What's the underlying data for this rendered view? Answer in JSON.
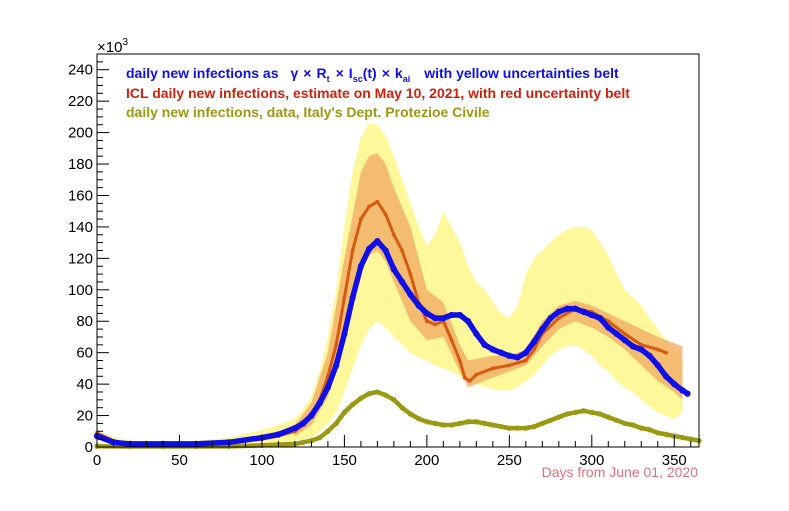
{
  "chart_data": {
    "type": "line",
    "title": "",
    "xlabel": "Days from June 01, 2020",
    "ylabel": "",
    "y_multiplier_label": "×10",
    "y_multiplier_exp": "3",
    "xlim": [
      0,
      365
    ],
    "ylim": [
      0,
      250
    ],
    "x_ticks": [
      0,
      50,
      100,
      150,
      200,
      250,
      300,
      350
    ],
    "y_ticks": [
      0,
      20,
      40,
      60,
      80,
      100,
      120,
      140,
      160,
      180,
      200,
      220,
      240
    ],
    "colors": {
      "model": "#1010e6",
      "icl": "#d85a10",
      "data": "#9a9a10",
      "yellow_band": "#fff89a",
      "red_band": "#f0a860",
      "xlabel": "#e0707a"
    },
    "legend": {
      "model": {
        "prefix": "daily new infections as",
        "gamma": "γ",
        "times": "×",
        "R": "R",
        "R_sub": "t",
        "I": "I",
        "I_sub": "sc",
        "t_arg": "(t)",
        "k": "k",
        "k_sub": "ai",
        "suffix": "with yellow uncertainties belt"
      },
      "icl": "ICL daily new infections, estimate on May 10, 2021, with red uncertainty belt",
      "data": "daily new infections, data, Italy's Dept. Protezioe Civile"
    },
    "series": [
      {
        "name": "model",
        "x": [
          0,
          10,
          20,
          40,
          60,
          80,
          100,
          110,
          120,
          125,
          130,
          135,
          140,
          145,
          150,
          155,
          160,
          165,
          170,
          175,
          180,
          185,
          190,
          195,
          200,
          205,
          210,
          215,
          220,
          225,
          230,
          235,
          240,
          245,
          250,
          255,
          260,
          265,
          270,
          275,
          280,
          285,
          290,
          295,
          300,
          305,
          310,
          315,
          320,
          325,
          330,
          335,
          340,
          345,
          350,
          355,
          358
        ],
        "values": [
          7,
          3,
          2,
          2,
          2,
          3,
          6,
          8,
          12,
          15,
          20,
          28,
          38,
          52,
          72,
          95,
          115,
          126,
          131,
          125,
          113,
          105,
          97,
          90,
          85,
          82,
          82,
          84,
          84,
          80,
          72,
          65,
          62,
          60,
          58,
          57,
          60,
          67,
          75,
          82,
          86,
          88,
          88,
          86,
          84,
          82,
          76,
          72,
          68,
          64,
          62,
          58,
          52,
          45,
          40,
          36,
          34
        ]
      },
      {
        "name": "icl",
        "x": [
          0,
          10,
          20,
          40,
          60,
          80,
          100,
          110,
          120,
          125,
          130,
          135,
          140,
          145,
          150,
          155,
          160,
          165,
          170,
          175,
          180,
          185,
          190,
          195,
          200,
          205,
          210,
          215,
          220,
          223,
          226,
          230,
          240,
          250,
          260,
          265,
          270,
          280,
          290,
          300,
          310,
          320,
          330,
          340,
          345
        ],
        "values": [
          9,
          4,
          2,
          2,
          2,
          3,
          5,
          7,
          10,
          14,
          20,
          30,
          45,
          65,
          95,
          125,
          145,
          153,
          156,
          148,
          135,
          125,
          110,
          92,
          80,
          78,
          80,
          68,
          55,
          44,
          42,
          46,
          50,
          52,
          55,
          62,
          72,
          82,
          88,
          86,
          80,
          72,
          65,
          62,
          60
        ]
      },
      {
        "name": "data",
        "x": [
          0,
          20,
          40,
          60,
          80,
          100,
          110,
          120,
          125,
          130,
          135,
          140,
          145,
          150,
          155,
          160,
          165,
          170,
          175,
          180,
          185,
          190,
          195,
          200,
          205,
          210,
          215,
          220,
          225,
          230,
          235,
          240,
          245,
          250,
          255,
          260,
          265,
          270,
          275,
          280,
          285,
          290,
          295,
          300,
          305,
          310,
          315,
          320,
          325,
          330,
          335,
          340,
          345,
          350,
          355,
          360,
          365
        ],
        "values": [
          0.5,
          0.3,
          0.3,
          0.3,
          0.4,
          1,
          1.5,
          2,
          3,
          4,
          6,
          10,
          15,
          22,
          27,
          31,
          34,
          35,
          33,
          30,
          25,
          21,
          18,
          16,
          15,
          14,
          14,
          15,
          16,
          16,
          15,
          14,
          13,
          12,
          12,
          12,
          13,
          15,
          17,
          19,
          21,
          22,
          23,
          22,
          21,
          19,
          17,
          15,
          14,
          12,
          11,
          9,
          8,
          7,
          6,
          5,
          4
        ]
      }
    ],
    "yellow_band": {
      "x": [
        0,
        20,
        40,
        60,
        80,
        100,
        110,
        120,
        125,
        130,
        135,
        140,
        145,
        150,
        155,
        160,
        165,
        170,
        175,
        180,
        185,
        190,
        195,
        200,
        205,
        210,
        215,
        220,
        225,
        230,
        235,
        240,
        245,
        250,
        255,
        260,
        265,
        270,
        275,
        280,
        285,
        290,
        295,
        300,
        305,
        310,
        315,
        320,
        325,
        330,
        335,
        340,
        345,
        350,
        355
      ],
      "upper": [
        9,
        4,
        3,
        4,
        6,
        11,
        14,
        18,
        24,
        32,
        48,
        70,
        100,
        140,
        175,
        197,
        206,
        205,
        198,
        185,
        170,
        155,
        140,
        128,
        135,
        150,
        140,
        130,
        115,
        105,
        100,
        92,
        85,
        82,
        90,
        110,
        120,
        125,
        130,
        135,
        138,
        140,
        140,
        138,
        130,
        122,
        110,
        100,
        95,
        90,
        82,
        75,
        68,
        62,
        56
      ],
      "lower": [
        5,
        1,
        1,
        1,
        1,
        2,
        3,
        4,
        5,
        6,
        10,
        15,
        22,
        35,
        50,
        65,
        75,
        80,
        76,
        70,
        65,
        60,
        57,
        55,
        52,
        50,
        48,
        45,
        42,
        40,
        38,
        37,
        36,
        36,
        38,
        42,
        46,
        52,
        58,
        62,
        64,
        65,
        62,
        58,
        52,
        48,
        42,
        38,
        35,
        30,
        26,
        22,
        20,
        18,
        22
      ]
    },
    "red_band": {
      "x": [
        120,
        130,
        140,
        150,
        160,
        165,
        170,
        175,
        180,
        190,
        200,
        210,
        220,
        225,
        230,
        240,
        250,
        260,
        270,
        280,
        290,
        300,
        310,
        320,
        330,
        340,
        350,
        355
      ],
      "upper": [
        14,
        28,
        60,
        120,
        175,
        185,
        187,
        180,
        165,
        140,
        100,
        92,
        65,
        55,
        56,
        58,
        58,
        62,
        80,
        90,
        93,
        90,
        85,
        80,
        75,
        70,
        66,
        64
      ],
      "lower": [
        7,
        14,
        32,
        70,
        112,
        122,
        125,
        118,
        105,
        80,
        68,
        70,
        48,
        38,
        40,
        44,
        48,
        52,
        64,
        75,
        80,
        76,
        70,
        62,
        52,
        42,
        35,
        30
      ]
    }
  }
}
